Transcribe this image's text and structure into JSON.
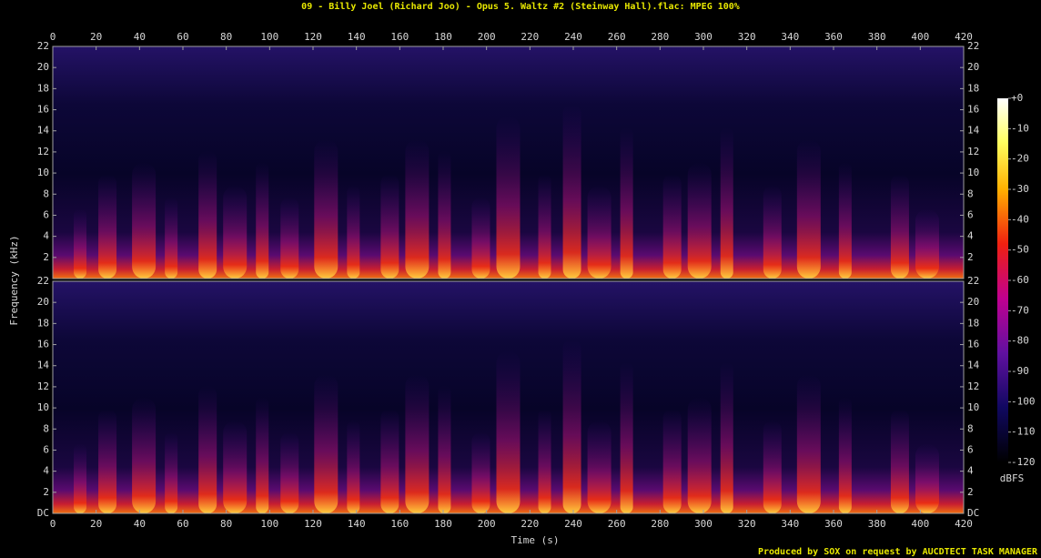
{
  "chart_data": {
    "type": "spectrogram",
    "title": "09 - Billy Joel (Richard Joo) - Opus 5. Waltz #2 (Steinway Hall).flac: MPEG 100%",
    "xlabel": "Time (s)",
    "ylabel": "Frequency (kHz)",
    "xlim": [
      0,
      420
    ],
    "xticks": [
      0,
      20,
      40,
      60,
      80,
      100,
      120,
      140,
      160,
      180,
      200,
      220,
      240,
      260,
      280,
      300,
      320,
      340,
      360,
      380,
      400,
      420
    ],
    "panels": [
      {
        "ylim": [
          0,
          22
        ],
        "yticks": [
          2,
          4,
          6,
          8,
          10,
          12,
          14,
          16,
          18,
          20,
          22
        ]
      },
      {
        "ylim": [
          0,
          22
        ],
        "yticks": [
          {
            "value": 0,
            "label": "DC"
          },
          2,
          4,
          6,
          8,
          10,
          12,
          14,
          16,
          18,
          20,
          22
        ]
      }
    ],
    "colorbar": {
      "label": "dBFS",
      "zlim": [
        -120,
        0
      ],
      "zticks": [
        {
          "value": 0,
          "label": "+0"
        },
        -10,
        -20,
        -30,
        -40,
        -50,
        -60,
        -70,
        -80,
        -90,
        -100,
        -110,
        -120
      ]
    },
    "footer": "Produced by SOX on request by AUCDTECT TASK MANAGER"
  }
}
